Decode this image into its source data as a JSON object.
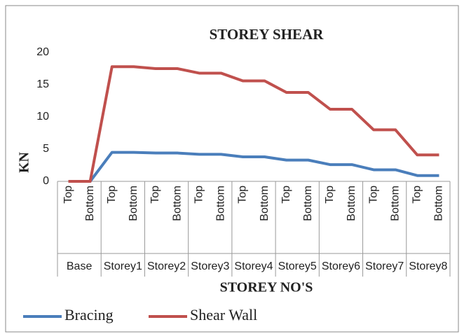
{
  "chart_data": {
    "type": "line",
    "title": "STOREY SHEAR",
    "x_label": "STOREY NO'S",
    "y_label": "KN",
    "categories": [
      "Top",
      "Bottom",
      "Top",
      "Bottom",
      "Top",
      "Bottom",
      "Top",
      "Bottom",
      "Top",
      "Bottom",
      "Top",
      "Bottom",
      "Top",
      "Bottom",
      "Top",
      "Bottom",
      "Top",
      "Bottom"
    ],
    "groups": [
      "Base",
      "Storey1",
      "Storey2",
      "Storey3",
      "Storey4",
      "Storey5",
      "Storey6",
      "Storey7",
      "Storey8"
    ],
    "series": [
      {
        "name": "Bracing",
        "color": "#4a7ebb",
        "values": [
          0,
          0,
          4.5,
          4.5,
          4.4,
          4.4,
          4.2,
          4.2,
          3.8,
          3.8,
          3.3,
          3.3,
          2.6,
          2.6,
          1.8,
          1.8,
          0.9,
          0.9
        ]
      },
      {
        "name": "Shear Wall",
        "color": "#c0504d",
        "values": [
          0,
          0,
          17.8,
          17.8,
          17.5,
          17.5,
          16.8,
          16.8,
          15.6,
          15.6,
          13.8,
          13.8,
          11.2,
          11.2,
          8.0,
          8.0,
          4.1,
          4.1
        ]
      }
    ],
    "ylim": [
      0,
      20
    ],
    "yticks": [
      0,
      5,
      10,
      15,
      20
    ],
    "legend": "bottom"
  }
}
